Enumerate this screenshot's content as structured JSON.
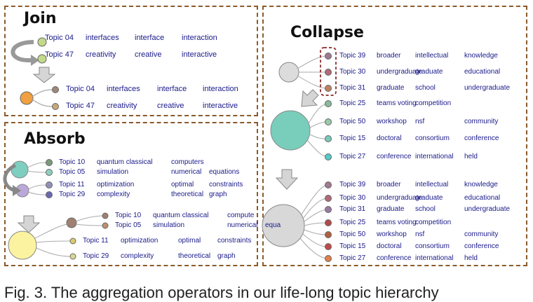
{
  "panels": {
    "join": {
      "title": "Join"
    },
    "absorb": {
      "title": "Absorb"
    },
    "collapse": {
      "title": "Collapse"
    }
  },
  "join_before": [
    {
      "topic": "Topic 04",
      "words": [
        "interfaces",
        "interface",
        "interaction"
      ]
    },
    {
      "topic": "Topic 47",
      "words": [
        "creativity",
        "creative",
        "interactive"
      ]
    }
  ],
  "join_after": [
    {
      "topic": "Topic 04",
      "words": [
        "interfaces",
        "interface",
        "interaction"
      ]
    },
    {
      "topic": "Topic 47",
      "words": [
        "creativity",
        "creative",
        "interactive"
      ]
    }
  ],
  "absorb_before": [
    {
      "topic": "Topic 10",
      "words": [
        "quantum classical",
        "computers"
      ]
    },
    {
      "topic": "Topic 05",
      "words": [
        "simulation",
        "numerical",
        "equations"
      ]
    },
    {
      "topic": "Topic 11",
      "words": [
        "optimization",
        "optimal",
        "constraints"
      ]
    },
    {
      "topic": "Topic 29",
      "words": [
        "complexity",
        "theoretical",
        "graph"
      ]
    }
  ],
  "absorb_after_top": [
    {
      "topic": "Topic 10",
      "words": [
        "quantum classical",
        "compute"
      ]
    },
    {
      "topic": "Topic 05",
      "words": [
        "simulation",
        "numerical",
        "equa"
      ]
    }
  ],
  "absorb_after_bottom": [
    {
      "topic": "Topic 11",
      "words": [
        "optimization",
        "optimal",
        "constraints"
      ]
    },
    {
      "topic": "Topic 29",
      "words": [
        "complexity",
        "theoretical",
        "graph"
      ]
    }
  ],
  "collapse_before": [
    {
      "topic": "Topic 39",
      "words": [
        "broader",
        "intellectual",
        "knowledge"
      ]
    },
    {
      "topic": "Topic 30",
      "words": [
        "undergraduate",
        "graduate",
        "educational"
      ]
    },
    {
      "topic": "Topic 31",
      "words": [
        "graduate",
        "school",
        "undergraduate"
      ]
    },
    {
      "topic": "Topic 25",
      "words": [
        "teams voting",
        "competition"
      ]
    },
    {
      "topic": "Topic 50",
      "words": [
        "workshop",
        "nsf",
        "community"
      ]
    },
    {
      "topic": "Topic 15",
      "words": [
        "doctoral",
        "consortium",
        "conference"
      ]
    },
    {
      "topic": "Topic 27",
      "words": [
        "conference",
        "international",
        "held"
      ]
    }
  ],
  "collapse_after": [
    {
      "topic": "Topic 39",
      "words": [
        "broader",
        "intellectual",
        "knowledge"
      ]
    },
    {
      "topic": "Topic 30",
      "words": [
        "undergraduate",
        "graduate",
        "educational"
      ]
    },
    {
      "topic": "Topic 31",
      "words": [
        "graduate",
        "school",
        "undergraduate"
      ]
    },
    {
      "topic": "Topic 25",
      "words": [
        "teams voting",
        "competition"
      ]
    },
    {
      "topic": "Topic 50",
      "words": [
        "workshop",
        "nsf",
        "community"
      ]
    },
    {
      "topic": "Topic 15",
      "words": [
        "doctoral",
        "consortium",
        "conference"
      ]
    },
    {
      "topic": "Topic 27",
      "words": [
        "conference",
        "international",
        "held"
      ]
    }
  ],
  "caption": "Fig. 3. The aggregation operators in our life-long topic hierarchy"
}
